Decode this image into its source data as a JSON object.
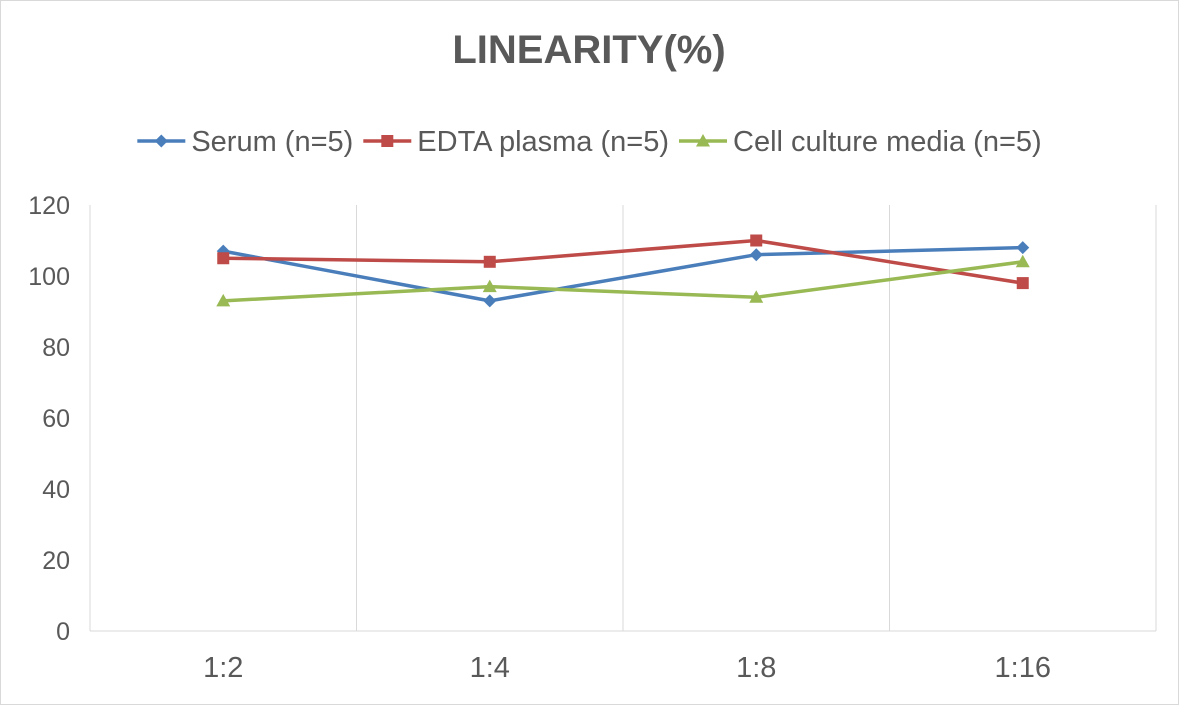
{
  "chart_data": {
    "type": "line",
    "title": "LINEARITY(%)",
    "xlabel": "",
    "ylabel": "",
    "categories": [
      "1:2",
      "1:4",
      "1:8",
      "1:16"
    ],
    "ylim": [
      0,
      120
    ],
    "yticks": [
      0,
      20,
      40,
      60,
      80,
      100,
      120
    ],
    "grid": "vertical",
    "legend_position": "top",
    "series": [
      {
        "name": "Serum (n=5)",
        "values": [
          107,
          93,
          106,
          108
        ],
        "color": "#4a7ebb",
        "marker": "diamond"
      },
      {
        "name": "EDTA plasma (n=5)",
        "values": [
          105,
          104,
          110,
          98
        ],
        "color": "#be4b48",
        "marker": "square"
      },
      {
        "name": "Cell culture media (n=5)",
        "values": [
          93,
          97,
          94,
          104
        ],
        "color": "#98b954",
        "marker": "triangle"
      }
    ]
  }
}
